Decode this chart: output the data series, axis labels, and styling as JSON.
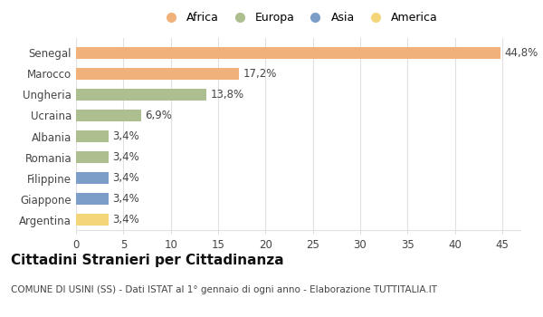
{
  "categories": [
    "Senegal",
    "Marocco",
    "Ungheria",
    "Ucraina",
    "Albania",
    "Romania",
    "Filippine",
    "Giappone",
    "Argentina"
  ],
  "values": [
    44.8,
    17.2,
    13.8,
    6.9,
    3.4,
    3.4,
    3.4,
    3.4,
    3.4
  ],
  "labels": [
    "44,8%",
    "17,2%",
    "13,8%",
    "6,9%",
    "3,4%",
    "3,4%",
    "3,4%",
    "3,4%",
    "3,4%"
  ],
  "bar_colors": [
    "#F0B27A",
    "#F0B27A",
    "#ADBF8E",
    "#ADBF8E",
    "#ADBF8E",
    "#ADBF8E",
    "#7B9DC7",
    "#7B9DC7",
    "#F5D57A"
  ],
  "legend_labels": [
    "Africa",
    "Europa",
    "Asia",
    "America"
  ],
  "legend_colors": [
    "#F0B27A",
    "#ADBF8E",
    "#7B9DC7",
    "#F5D57A"
  ],
  "xlim": [
    0,
    47
  ],
  "xticks": [
    0,
    5,
    10,
    15,
    20,
    25,
    30,
    35,
    40,
    45
  ],
  "title": "Cittadini Stranieri per Cittadinanza",
  "subtitle": "COMUNE DI USINI (SS) - Dati ISTAT al 1° gennaio di ogni anno - Elaborazione TUTTITALIA.IT",
  "background_color": "#ffffff",
  "grid_color": "#e0e0e0",
  "bar_height": 0.55,
  "label_fontsize": 8.5,
  "ytick_fontsize": 8.5,
  "xtick_fontsize": 8.5,
  "title_fontsize": 11,
  "subtitle_fontsize": 7.5
}
